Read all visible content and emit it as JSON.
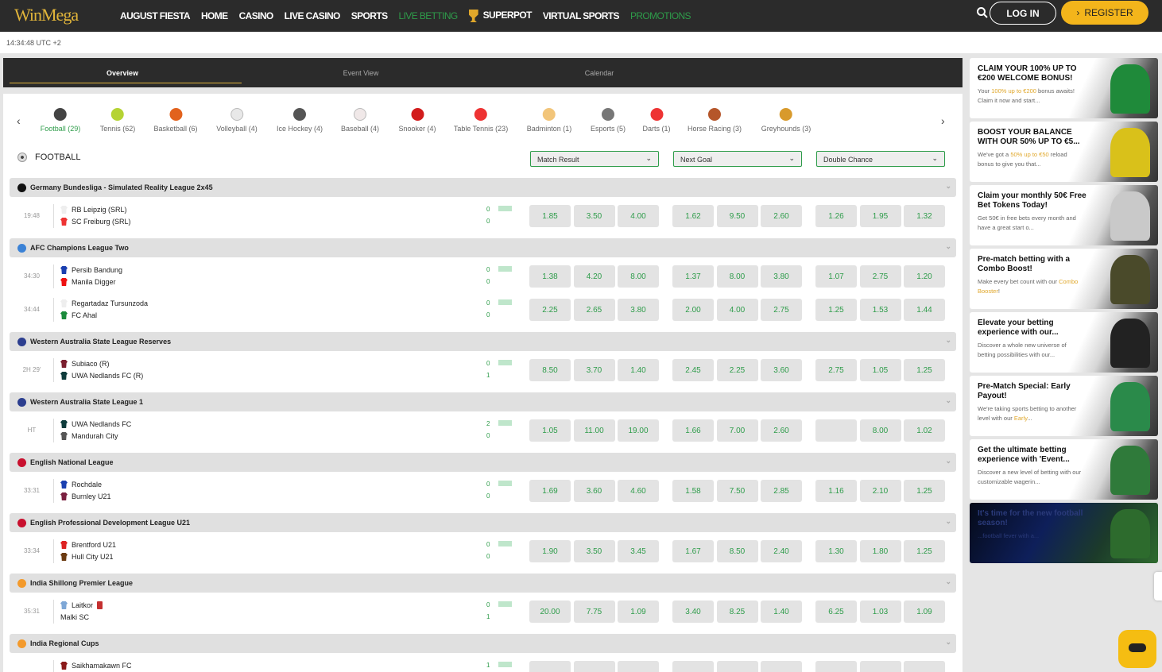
{
  "header": {
    "logo": "WinMega",
    "nav": [
      {
        "label": "AUGUST FIESTA"
      },
      {
        "label": "HOME"
      },
      {
        "label": "CASINO"
      },
      {
        "label": "LIVE CASINO"
      },
      {
        "label": "SPORTS"
      },
      {
        "label": "LIVE BETTING",
        "active": true
      },
      {
        "label": "SUPERPOT",
        "icon": "trophy-icon"
      },
      {
        "label": "VIRTUAL SPORTS"
      },
      {
        "label": "PROMOTIONS",
        "green": true
      }
    ],
    "login": "LOG IN",
    "register": "REGISTER",
    "register_icon": "›"
  },
  "clock": "14:34:48 UTC +2",
  "tabs": [
    "Overview",
    "Event View",
    "Calendar"
  ],
  "sports": [
    {
      "label": "Football (29)",
      "color": "#444",
      "active": true
    },
    {
      "label": "Tennis (62)",
      "color": "#b5d333"
    },
    {
      "label": "Basketball (6)",
      "color": "#e2621d"
    },
    {
      "label": "Volleyball (4)",
      "color": "#e8e8e8"
    },
    {
      "label": "Ice Hockey (4)",
      "color": "#555"
    },
    {
      "label": "Baseball (4)",
      "color": "#f0e8e8"
    },
    {
      "label": "Snooker (4)",
      "color": "#d21c1c"
    },
    {
      "label": "Table Tennis (23)",
      "color": "#e33"
    },
    {
      "label": "Badminton (1)",
      "color": "#f2c57a"
    },
    {
      "label": "Esports (5)",
      "color": "#777"
    },
    {
      "label": "Darts (1)",
      "color": "#e33"
    },
    {
      "label": "Horse Racing (3)",
      "color": "#b5562a"
    },
    {
      "label": "Greyhounds (3)",
      "color": "#d89a2c"
    }
  ],
  "section_title": "FOOTBALL",
  "markets": [
    "Match Result",
    "Next Goal",
    "Double Chance"
  ],
  "colors": {
    "accent_green": "#2e9c4a",
    "brand_gold": "#f3b51b",
    "header_bg": "#2b2b2b"
  },
  "leagues": [
    {
      "name": "Germany Bundesliga - Simulated Reality League 2x45",
      "flag": "#111",
      "matches": [
        {
          "time": "19:48",
          "home": "RB Leipzig (SRL)",
          "away": "SC Freiburg (SRL)",
          "hs": "0",
          "as": "0",
          "hc": "#eee",
          "ac": "#e33",
          "odds": [
            "1.85",
            "3.50",
            "4.00",
            "1.62",
            "9.50",
            "2.60",
            "1.26",
            "1.95",
            "1.32"
          ]
        }
      ]
    },
    {
      "name": "AFC Champions League Two",
      "flag": "#3b82d6",
      "matches": [
        {
          "time": "34:30",
          "home": "Persib Bandung",
          "away": "Manila Digger",
          "hs": "0",
          "as": "0",
          "hc": "#1a3fb0",
          "ac": "#e11",
          "odds": [
            "1.38",
            "4.20",
            "8.00",
            "1.37",
            "8.00",
            "3.80",
            "1.07",
            "2.75",
            "1.20"
          ]
        },
        {
          "time": "34:44",
          "home": "Regartadaz Tursunzoda",
          "away": "FC Ahal",
          "hs": "0",
          "as": "0",
          "hc": "#eee",
          "ac": "#1a8a3a",
          "odds": [
            "2.25",
            "2.65",
            "3.80",
            "2.00",
            "4.00",
            "2.75",
            "1.25",
            "1.53",
            "1.44"
          ]
        }
      ]
    },
    {
      "name": "Western Australia State League Reserves",
      "flag": "#2c3e8f",
      "matches": [
        {
          "time": "2H 29'",
          "home": "Subiaco (R)",
          "away": "UWA Nedlands FC (R)",
          "hs": "0",
          "as": "1",
          "hc": "#7a1e2e",
          "ac": "#0d3b3b",
          "odds": [
            "8.50",
            "3.70",
            "1.40",
            "2.45",
            "2.25",
            "3.60",
            "2.75",
            "1.05",
            "1.25"
          ]
        }
      ]
    },
    {
      "name": "Western Australia State League 1",
      "flag": "#2c3e8f",
      "matches": [
        {
          "time": "HT",
          "home": "UWA Nedlands FC",
          "away": "Mandurah City",
          "hs": "2",
          "as": "0",
          "hc": "#0d3b3b",
          "ac": "#555",
          "odds": [
            "1.05",
            "11.00",
            "19.00",
            "1.66",
            "7.00",
            "2.60",
            "",
            "8.00",
            "1.02"
          ]
        }
      ]
    },
    {
      "name": "English National League",
      "flag": "#c8102e",
      "matches": [
        {
          "time": "33:31",
          "home": "Rochdale",
          "away": "Burnley U21",
          "hs": "0",
          "as": "0",
          "hc": "#1a3fb0",
          "ac": "#7a2040",
          "odds": [
            "1.69",
            "3.60",
            "4.60",
            "1.58",
            "7.50",
            "2.85",
            "1.16",
            "2.10",
            "1.25"
          ]
        }
      ]
    },
    {
      "name": "English Professional Development League U21",
      "flag": "#c8102e",
      "matches": [
        {
          "time": "33:34",
          "home": "Brentford U21",
          "away": "Hull City U21",
          "hs": "0",
          "as": "0",
          "hc": "#d22",
          "ac": "#6b3a10",
          "odds": [
            "1.90",
            "3.50",
            "3.45",
            "1.67",
            "8.50",
            "2.40",
            "1.30",
            "1.80",
            "1.25"
          ]
        }
      ]
    },
    {
      "name": "India Shillong Premier League",
      "flag": "#f39a2c",
      "matches": [
        {
          "time": "35:31",
          "home": "Laitkor",
          "away": "Malki SC",
          "hs": "0",
          "as": "1",
          "hc": "#7ea7d6",
          "ac": "",
          "red_card": true,
          "odds": [
            "20.00",
            "7.75",
            "1.09",
            "3.40",
            "8.25",
            "1.40",
            "6.25",
            "1.03",
            "1.09"
          ]
        }
      ]
    },
    {
      "name": "India Regional Cups",
      "flag": "#f39a2c",
      "matches": [
        {
          "time": "",
          "home": "Saikhamakawn FC",
          "away": "",
          "hs": "1",
          "as": "",
          "hc": "#8b1a1a",
          "ac": "",
          "odds": [
            "",
            "",
            "",
            "",
            "",
            "",
            "",
            "",
            ""
          ]
        }
      ]
    }
  ],
  "promos": [
    {
      "title": "CLAIM YOUR 100% UP TO €200 WELCOME BONUS!",
      "pre": "Your ",
      "hl": "100% up to €200",
      "post": " bonus awaits! Claim it now and start...",
      "img": "#1f8a3a"
    },
    {
      "title": "BOOST YOUR BALANCE WITH OUR 50% UP TO €5...",
      "pre": "We've got a ",
      "hl": "50% up to €50",
      "post": " reload bonus to give you that...",
      "img": "#d9c11a"
    },
    {
      "title": "Claim your monthly 50€ Free Bet Tokens Today!",
      "pre": "Get 50€ in free bets every month and have a great start o...",
      "hl": "",
      "post": "",
      "img": "#c9c9c9"
    },
    {
      "title": "Pre-match betting with a Combo Boost!",
      "pre": "Make every bet count with our ",
      "hl": "Combo Booster",
      "post": "!",
      "img": "#4a4a2a"
    },
    {
      "title": "Elevate your betting experience with our...",
      "pre": "Discover a whole new universe of betting possibilities with our...",
      "hl": "",
      "post": "",
      "img": "#222"
    },
    {
      "title": "Pre-Match Special: Early Payout!",
      "pre": "We're taking sports betting to another level with our ",
      "hl": "Early",
      "post": "...",
      "img": "#2a8a4a"
    },
    {
      "title": "Get the ultimate betting experience with 'Event...",
      "pre": "Discover a new level of betting with our customizable wagerin...",
      "hl": "",
      "post": "",
      "img": "#2f7a3a"
    },
    {
      "title": "It's time for the new football season!",
      "pre": "...football fever with a...",
      "hl": "",
      "post": "",
      "img": "#2d6b2d",
      "dark": true
    }
  ]
}
